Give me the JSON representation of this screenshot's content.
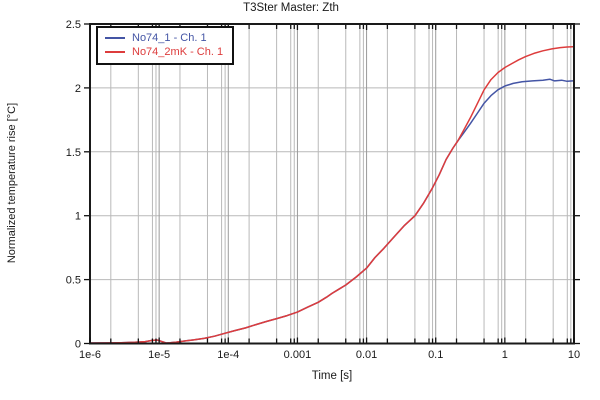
{
  "window": {
    "bg_color": "#ffffff"
  },
  "chart_data": {
    "type": "line",
    "title": "T3Ster Master: Zth",
    "xlabel": "Time [s]",
    "ylabel": "Normalized temperature rise [°C]",
    "grid": true,
    "legend_position": "top-left",
    "frame_color": "#1a1a1a",
    "grid_minor_color": "#b9b9b9",
    "grid_major_color": "#9a9a9a",
    "x_axis": {
      "scale": "log",
      "min": 1e-06,
      "max": 10,
      "min_exp": -6,
      "max_exp": 1,
      "decade_labels": [
        "1e-6",
        "1e-5",
        "1e-4",
        "0.001",
        "0.01",
        "0.1",
        "1",
        "10"
      ],
      "minor_multiples": [
        2,
        5,
        8,
        9
      ]
    },
    "y_axis": {
      "min": 0,
      "max": 2.5,
      "tick_step": 0.5,
      "tick_values": [
        0,
        0.5,
        1,
        1.5,
        2,
        2.5
      ],
      "tick_labels": [
        "0",
        "0.5",
        "1",
        "1.5",
        "2",
        "2.5"
      ]
    },
    "common_points": [
      [
        -6.0,
        0.004
      ],
      [
        -5.75,
        0.005
      ],
      [
        -5.55,
        0.006
      ],
      [
        -5.35,
        0.009
      ],
      [
        -5.2,
        0.015
      ],
      [
        -5.1,
        0.024
      ],
      [
        -5.03,
        0.027
      ],
      [
        -4.97,
        0.017
      ],
      [
        -4.9,
        0.004
      ],
      [
        -4.84,
        0.006
      ],
      [
        -4.75,
        0.011
      ],
      [
        -4.62,
        0.02
      ],
      [
        -4.5,
        0.028
      ],
      [
        -4.35,
        0.04
      ],
      [
        -4.2,
        0.057
      ],
      [
        -4.05,
        0.08
      ],
      [
        -3.9,
        0.102
      ],
      [
        -3.75,
        0.122
      ],
      [
        -3.6,
        0.148
      ],
      [
        -3.45,
        0.172
      ],
      [
        -3.3,
        0.195
      ],
      [
        -3.15,
        0.218
      ],
      [
        -3.0,
        0.246
      ],
      [
        -2.85,
        0.285
      ],
      [
        -2.7,
        0.322
      ],
      [
        -2.58,
        0.362
      ],
      [
        -2.5,
        0.392
      ],
      [
        -2.4,
        0.425
      ],
      [
        -2.3,
        0.458
      ],
      [
        -2.15,
        0.52
      ],
      [
        -2.0,
        0.59
      ],
      [
        -1.88,
        0.672
      ],
      [
        -1.75,
        0.745
      ],
      [
        -1.6,
        0.835
      ],
      [
        -1.45,
        0.925
      ],
      [
        -1.3,
        1.0
      ],
      [
        -1.18,
        1.095
      ],
      [
        -1.05,
        1.215
      ],
      [
        -0.95,
        1.32
      ],
      [
        -0.85,
        1.44
      ],
      [
        -0.75,
        1.53
      ],
      [
        -0.68,
        1.585
      ]
    ],
    "series": [
      {
        "name": "No74_1 - Ch. 1",
        "color": "#4455a5",
        "tail": [
          [
            -0.6,
            1.645
          ],
          [
            -0.5,
            1.72
          ],
          [
            -0.4,
            1.8
          ],
          [
            -0.3,
            1.88
          ],
          [
            -0.2,
            1.94
          ],
          [
            -0.1,
            1.985
          ],
          [
            0.0,
            2.015
          ],
          [
            0.12,
            2.035
          ],
          [
            0.25,
            2.048
          ],
          [
            0.4,
            2.055
          ],
          [
            0.55,
            2.06
          ],
          [
            0.65,
            2.068
          ],
          [
            0.72,
            2.055
          ],
          [
            0.82,
            2.06
          ],
          [
            0.9,
            2.052
          ],
          [
            0.98,
            2.055
          ]
        ]
      },
      {
        "name": "No74_2mK - Ch. 1",
        "color": "#dd3c3c",
        "tail": [
          [
            -0.6,
            1.665
          ],
          [
            -0.5,
            1.765
          ],
          [
            -0.4,
            1.875
          ],
          [
            -0.3,
            1.985
          ],
          [
            -0.2,
            2.065
          ],
          [
            -0.1,
            2.12
          ],
          [
            0.0,
            2.16
          ],
          [
            0.1,
            2.19
          ],
          [
            0.2,
            2.22
          ],
          [
            0.3,
            2.245
          ],
          [
            0.42,
            2.27
          ],
          [
            0.55,
            2.29
          ],
          [
            0.68,
            2.305
          ],
          [
            0.8,
            2.315
          ],
          [
            0.9,
            2.32
          ],
          [
            0.98,
            2.322
          ]
        ]
      }
    ]
  }
}
